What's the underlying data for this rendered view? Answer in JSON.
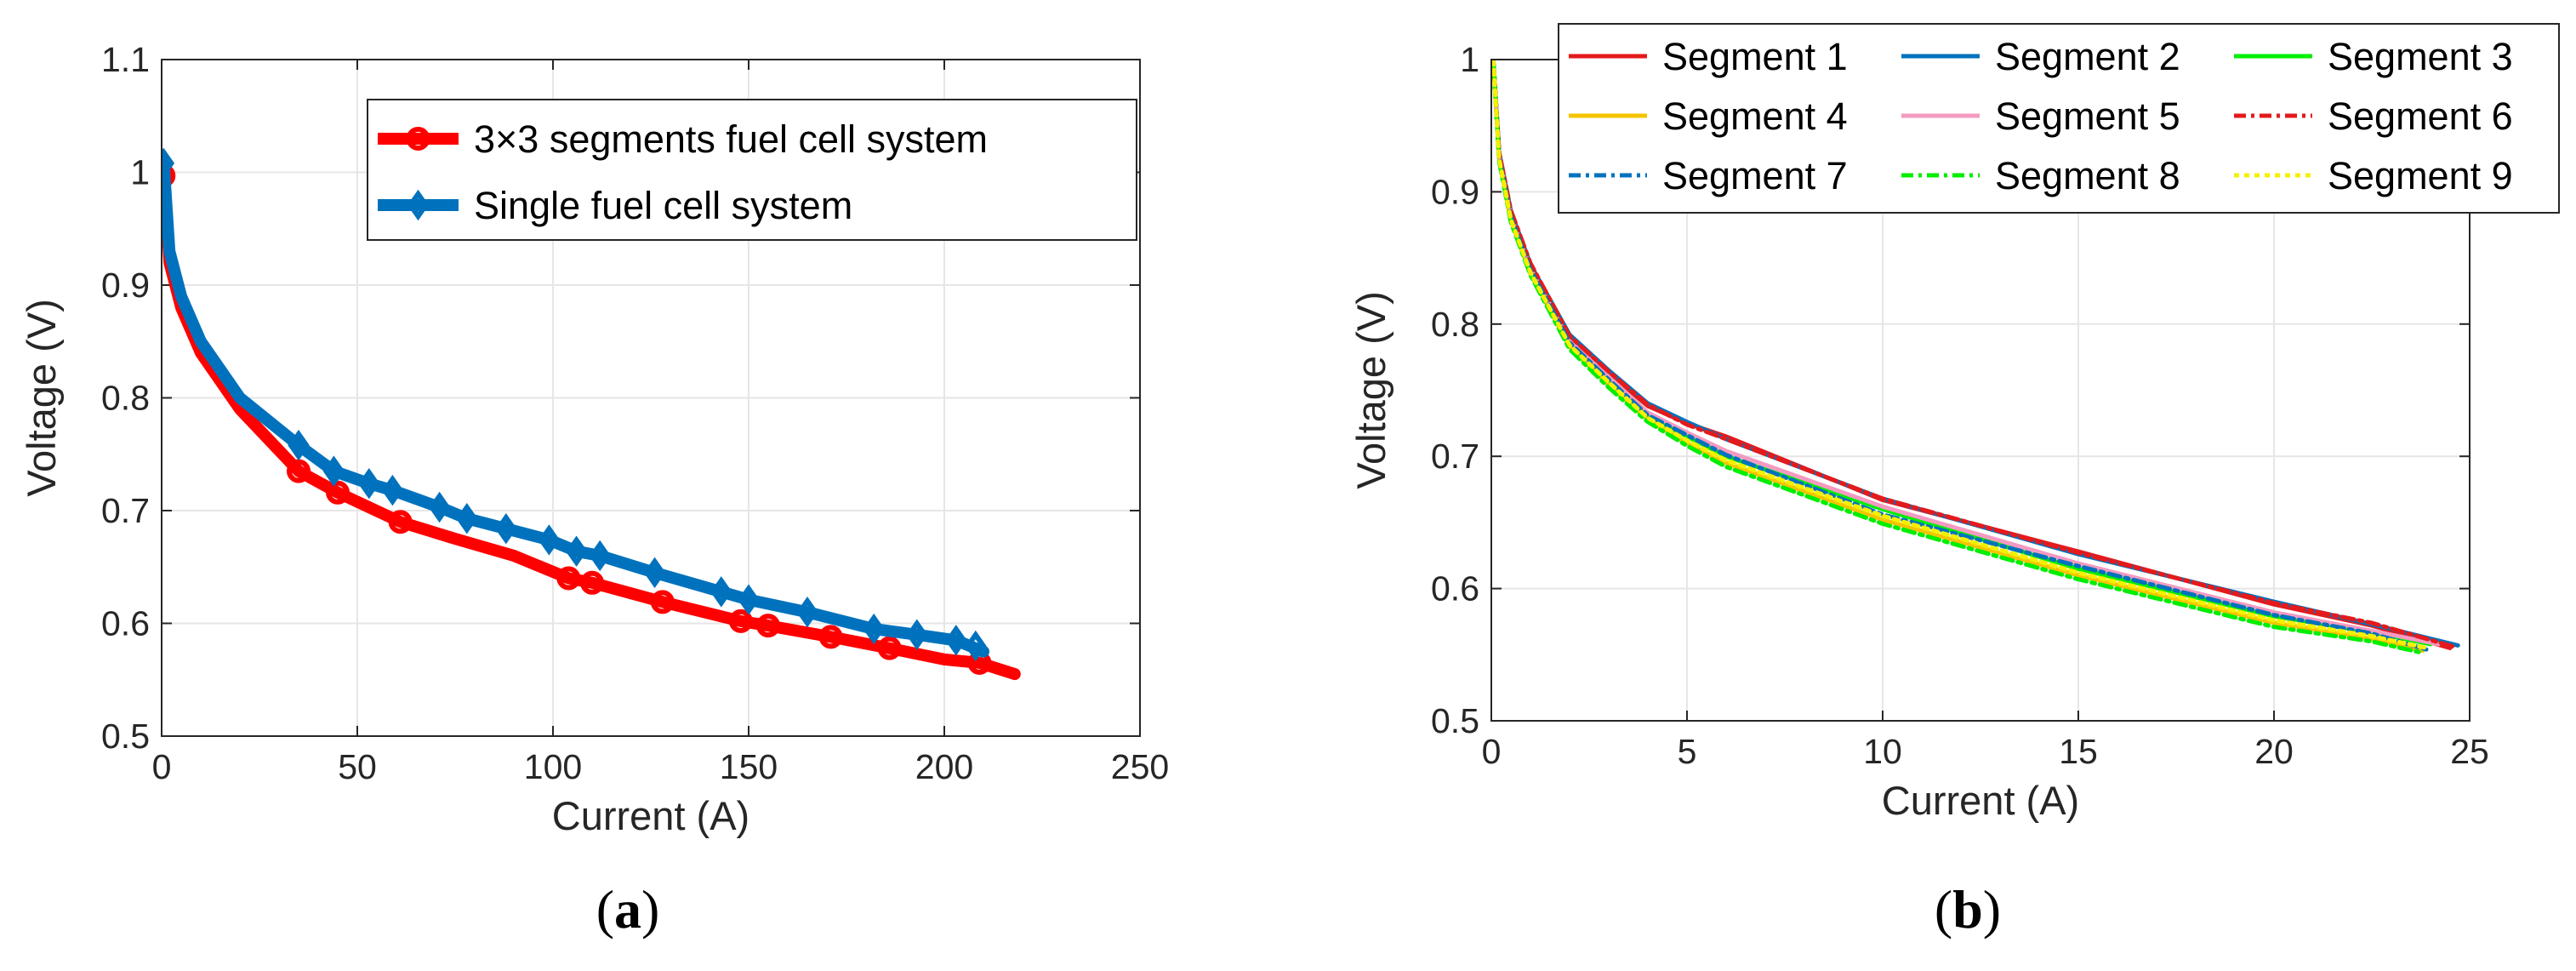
{
  "chart_data": [
    {
      "type": "line",
      "panel": "a",
      "caption": "(a)",
      "xlabel": "Current (A)",
      "ylabel": "Voltage (V)",
      "xlim": [
        0,
        250
      ],
      "ylim": [
        0.5,
        1.1
      ],
      "xticks": [
        "0",
        "50",
        "100",
        "150",
        "200",
        "250"
      ],
      "yticks": [
        "0.5",
        "0.6",
        "0.7",
        "0.8",
        "0.9",
        "1",
        "1.1"
      ],
      "grid": true,
      "legend_position": "top-right",
      "series": [
        {
          "name": "3×3 segments fuel cell system",
          "color": "#ff0000",
          "marker": "circle",
          "x": [
            0.5,
            2,
            5,
            10,
            20,
            35,
            45,
            61,
            75,
            90,
            104,
            110,
            128,
            148,
            155,
            171,
            186,
            200,
            209,
            218
          ],
          "y": [
            1.0,
            0.92,
            0.88,
            0.84,
            0.79,
            0.735,
            0.716,
            0.69,
            0.675,
            0.66,
            0.64,
            0.636,
            0.619,
            0.602,
            0.598,
            0.588,
            0.578,
            0.568,
            0.565,
            0.555
          ],
          "marker_x": [
            0.5,
            35,
            45,
            61,
            104,
            110,
            128,
            148,
            155,
            171,
            186,
            209
          ],
          "marker_y": [
            0.997,
            0.735,
            0.716,
            0.69,
            0.64,
            0.636,
            0.619,
            0.602,
            0.598,
            0.588,
            0.578,
            0.565
          ]
        },
        {
          "name": "Single fuel cell system",
          "color": "#0072bd",
          "marker": "diamond",
          "x": [
            0.5,
            2,
            5,
            10,
            20,
            35,
            44,
            53,
            59,
            71,
            78,
            88,
            99,
            106,
            112,
            126,
            143,
            150,
            165,
            182,
            193,
            203,
            210
          ],
          "y": [
            1.01,
            0.93,
            0.89,
            0.85,
            0.8,
            0.758,
            0.735,
            0.724,
            0.718,
            0.703,
            0.693,
            0.684,
            0.674,
            0.664,
            0.66,
            0.645,
            0.628,
            0.621,
            0.61,
            0.595,
            0.59,
            0.585,
            0.575
          ],
          "marker_x": [
            0.5,
            35,
            44,
            53,
            59,
            71,
            78,
            88,
            99,
            106,
            112,
            126,
            143,
            150,
            165,
            182,
            193,
            203,
            208
          ],
          "marker_y": [
            1.008,
            0.758,
            0.735,
            0.724,
            0.718,
            0.703,
            0.693,
            0.684,
            0.674,
            0.664,
            0.66,
            0.645,
            0.628,
            0.621,
            0.61,
            0.595,
            0.59,
            0.585,
            0.58
          ]
        }
      ]
    },
    {
      "type": "line",
      "panel": "b",
      "caption": "(b)",
      "xlabel": "Current (A)",
      "ylabel": "Voltage (V)",
      "xlim": [
        0,
        25
      ],
      "ylim": [
        0.5,
        1
      ],
      "xticks": [
        "0",
        "5",
        "10",
        "15",
        "20",
        "25"
      ],
      "yticks": [
        "0.5",
        "0.6",
        "0.7",
        "0.8",
        "0.9",
        "1"
      ],
      "grid": true,
      "legend_position": "top, 3 columns",
      "series": [
        {
          "name": "Segment 1",
          "color": "#e41a1c",
          "dash": "",
          "x": [
            0.05,
            0.2,
            0.5,
            1,
            2,
            3,
            4,
            5,
            6,
            10,
            15,
            20,
            22.5,
            24.5
          ],
          "y": [
            1.0,
            0.93,
            0.885,
            0.845,
            0.79,
            0.763,
            0.738,
            0.725,
            0.715,
            0.667,
            0.628,
            0.588,
            0.572,
            0.555
          ]
        },
        {
          "name": "Segment 2",
          "color": "#0072bd",
          "dash": "",
          "x": [
            0.05,
            0.2,
            0.5,
            1,
            2,
            3,
            4,
            5,
            6,
            10,
            15,
            20,
            22.5,
            24.7
          ],
          "y": [
            1.0,
            0.93,
            0.885,
            0.845,
            0.792,
            0.765,
            0.74,
            0.726,
            0.713,
            0.668,
            0.626,
            0.59,
            0.573,
            0.557
          ]
        },
        {
          "name": "Segment 3",
          "color": "#00ee00",
          "dash": "",
          "x": [
            0.05,
            0.2,
            0.5,
            1,
            2,
            3,
            4,
            5,
            6,
            10,
            15,
            20,
            22.5,
            24.0
          ],
          "y": [
            1.0,
            0.925,
            0.88,
            0.84,
            0.785,
            0.758,
            0.73,
            0.715,
            0.7,
            0.66,
            0.615,
            0.579,
            0.567,
            0.558
          ]
        },
        {
          "name": "Segment 4",
          "color": "#f5c400",
          "dash": "",
          "x": [
            0.05,
            0.2,
            0.5,
            1,
            2,
            3,
            4,
            5,
            6,
            10,
            15,
            20,
            22.5,
            23.8
          ],
          "y": [
            1.0,
            0.924,
            0.878,
            0.838,
            0.783,
            0.754,
            0.728,
            0.71,
            0.695,
            0.652,
            0.61,
            0.574,
            0.562,
            0.553
          ]
        },
        {
          "name": "Segment 5",
          "color": "#f49ac1",
          "dash": "",
          "x": [
            0.05,
            0.2,
            0.5,
            1,
            2,
            3,
            4,
            5,
            6,
            10,
            15,
            20,
            22.5,
            24.2
          ],
          "y": [
            1.0,
            0.927,
            0.882,
            0.842,
            0.787,
            0.76,
            0.733,
            0.718,
            0.704,
            0.662,
            0.619,
            0.582,
            0.568,
            0.558
          ]
        },
        {
          "name": "Segment 6",
          "color": "#e41a1c",
          "dash": "14,6,4,6",
          "x": [
            0.05,
            0.2,
            0.5,
            1,
            2,
            3,
            4,
            5,
            6,
            10,
            15,
            20,
            22.5,
            24.6
          ],
          "y": [
            1.0,
            0.93,
            0.886,
            0.846,
            0.791,
            0.764,
            0.739,
            0.724,
            0.713,
            0.668,
            0.627,
            0.589,
            0.574,
            0.556
          ]
        },
        {
          "name": "Segment 7",
          "color": "#0072bd",
          "dash": "14,6,4,6",
          "x": [
            0.05,
            0.2,
            0.5,
            1,
            2,
            3,
            4,
            5,
            6,
            10,
            15,
            20,
            22.5,
            24.0
          ],
          "y": [
            1.0,
            0.926,
            0.881,
            0.841,
            0.786,
            0.758,
            0.731,
            0.716,
            0.701,
            0.656,
            0.617,
            0.58,
            0.566,
            0.553
          ]
        },
        {
          "name": "Segment 8",
          "color": "#00ee00",
          "dash": "14,6,4,6",
          "x": [
            0.05,
            0.2,
            0.5,
            1,
            2,
            3,
            4,
            5,
            6,
            10,
            15,
            20,
            22.5,
            23.7
          ],
          "y": [
            1.0,
            0.923,
            0.877,
            0.837,
            0.781,
            0.752,
            0.726,
            0.708,
            0.692,
            0.649,
            0.607,
            0.571,
            0.56,
            0.552
          ]
        },
        {
          "name": "Segment 9",
          "color": "#f5f000",
          "dash": "6,6",
          "x": [
            0.05,
            0.2,
            0.5,
            1,
            2,
            3,
            4,
            5,
            6,
            10,
            15,
            20,
            22.5,
            23.9
          ],
          "y": [
            1.0,
            0.925,
            0.879,
            0.839,
            0.784,
            0.756,
            0.729,
            0.712,
            0.697,
            0.655,
            0.612,
            0.576,
            0.564,
            0.555
          ]
        }
      ]
    }
  ]
}
